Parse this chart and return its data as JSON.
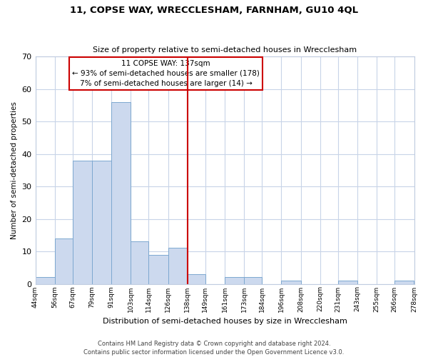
{
  "title1": "11, COPSE WAY, WRECCLESHAM, FARNHAM, GU10 4QL",
  "title2": "Size of property relative to semi-detached houses in Wrecclesham",
  "xlabel": "Distribution of semi-detached houses by size in Wrecclesham",
  "ylabel": "Number of semi-detached properties",
  "bin_edges": [
    44,
    56,
    67,
    79,
    91,
    103,
    114,
    126,
    138,
    149,
    161,
    173,
    184,
    196,
    208,
    220,
    231,
    243,
    255,
    266,
    278
  ],
  "bin_labels": [
    "44sqm",
    "56sqm",
    "67sqm",
    "79sqm",
    "91sqm",
    "103sqm",
    "114sqm",
    "126sqm",
    "138sqm",
    "149sqm",
    "161sqm",
    "173sqm",
    "184sqm",
    "196sqm",
    "208sqm",
    "220sqm",
    "231sqm",
    "243sqm",
    "255sqm",
    "266sqm",
    "278sqm"
  ],
  "counts": [
    2,
    14,
    38,
    38,
    56,
    13,
    9,
    11,
    3,
    0,
    2,
    2,
    0,
    1,
    0,
    0,
    1,
    0,
    0,
    1
  ],
  "bar_color": "#ccd9ee",
  "bar_edgecolor": "#7da8d0",
  "property_line_x": 138,
  "property_line_color": "#cc0000",
  "box_text_line1": "11 COPSE WAY: 137sqm",
  "box_text_line2": "← 93% of semi-detached houses are smaller (178)",
  "box_text_line3": "7% of semi-detached houses are larger (14) →",
  "ylim": [
    0,
    70
  ],
  "yticks": [
    0,
    10,
    20,
    30,
    40,
    50,
    60,
    70
  ],
  "footnote1": "Contains HM Land Registry data © Crown copyright and database right 2024.",
  "footnote2": "Contains public sector information licensed under the Open Government Licence v3.0.",
  "background_color": "#ffffff",
  "grid_color": "#c8d4e8"
}
